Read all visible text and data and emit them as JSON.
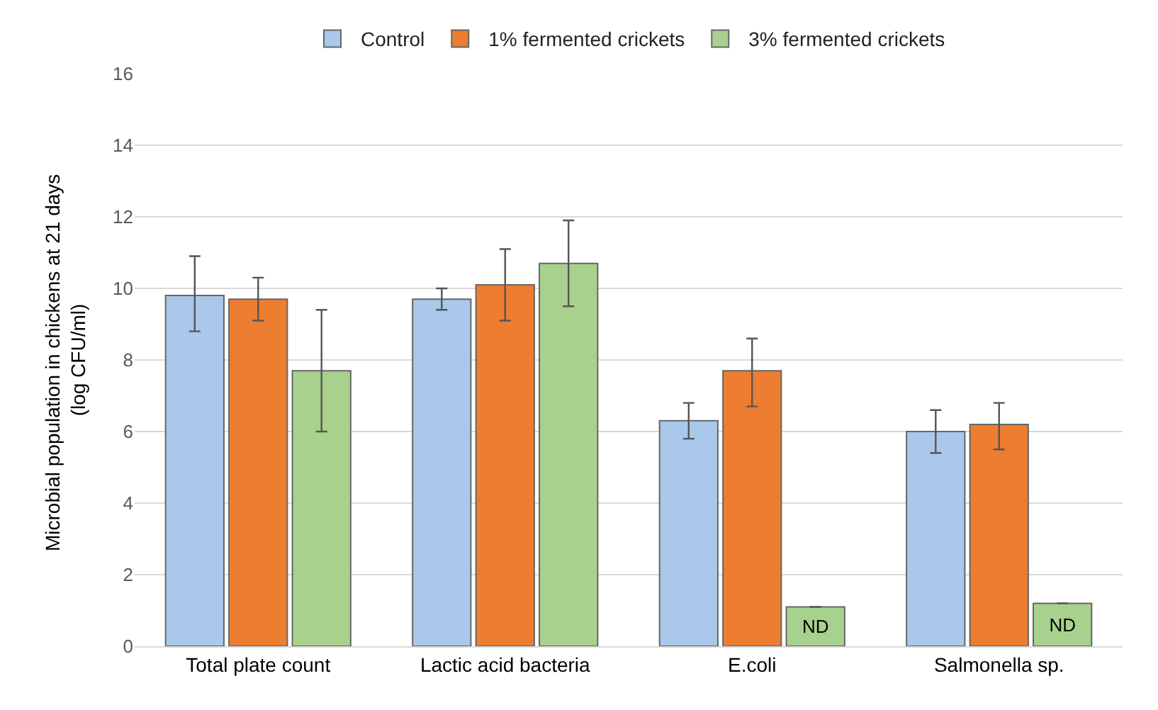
{
  "chart_data": {
    "type": "bar",
    "ylabel": "Microbial population in chickens at 21 days  (log CFU/ml)",
    "categories": [
      "Total plate count",
      "Lactic acid bacteria",
      "E.coli",
      "Salmonella sp."
    ],
    "series": [
      {
        "name": "Control",
        "color": "#a9c8ea",
        "values": [
          9.8,
          9.7,
          6.3,
          6.0
        ],
        "errors": [
          [
            8.8,
            10.9
          ],
          [
            9.4,
            10.0
          ],
          [
            5.8,
            6.8
          ],
          [
            5.4,
            6.6
          ]
        ]
      },
      {
        "name": "1% fermented crickets",
        "color": "#ed7d31",
        "values": [
          9.7,
          10.1,
          7.7,
          6.2
        ],
        "errors": [
          [
            9.1,
            10.3
          ],
          [
            9.1,
            11.1
          ],
          [
            6.7,
            8.6
          ],
          [
            5.5,
            6.8
          ]
        ]
      },
      {
        "name": "3% fermented crickets",
        "color": "#a9d18e",
        "values": [
          7.7,
          10.7,
          1.1,
          1.2
        ],
        "errors": [
          [
            6.0,
            9.4
          ],
          [
            9.5,
            11.9
          ],
          null,
          null
        ],
        "value_labels": [
          null,
          null,
          "ND",
          "ND"
        ]
      }
    ],
    "ylim": [
      0,
      16
    ],
    "yticks": [
      0,
      2,
      4,
      6,
      8,
      10,
      12,
      14,
      16
    ],
    "grid": "y",
    "legend": "top"
  }
}
